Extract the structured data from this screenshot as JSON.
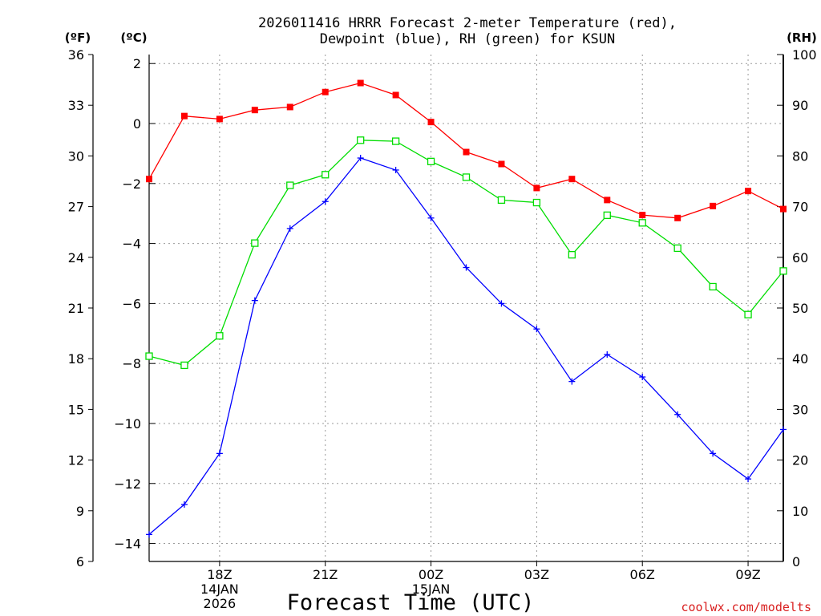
{
  "chart_data": {
    "type": "line",
    "title_lines": [
      "2026011416 HRRR Forecast 2-meter Temperature (red),",
      "Dewpoint (blue), RH (green) for KSUN"
    ],
    "xlabel": "Forecast Time (UTC)",
    "credit": "coolwx.com/modelts",
    "units": {
      "fahrenheit": "(ºF)",
      "celsius": "(ºC)",
      "rh": "(RH)"
    },
    "colors": {
      "temperature": "#ff0000",
      "dewpoint": "#0000ff",
      "rh": "#00dd00",
      "grid": "#999999",
      "credit": "#d92020"
    },
    "x": [
      16,
      17,
      18,
      19,
      20,
      21,
      22,
      23,
      24,
      25,
      26,
      27,
      28,
      29,
      30,
      31,
      32,
      33,
      34
    ],
    "xlim": [
      16,
      34
    ],
    "x_ticks": [
      {
        "x": 18,
        "lines": [
          "18Z",
          "14JAN",
          "2026"
        ]
      },
      {
        "x": 21,
        "lines": [
          "21Z"
        ]
      },
      {
        "x": 24,
        "lines": [
          "00Z",
          "15JAN"
        ]
      },
      {
        "x": 27,
        "lines": [
          "03Z"
        ]
      },
      {
        "x": 30,
        "lines": [
          "06Z"
        ]
      },
      {
        "x": 33,
        "lines": [
          "09Z"
        ]
      }
    ],
    "y_celsius": {
      "lim": [
        -14.6,
        2.3
      ],
      "ticks": [
        2,
        0,
        -2,
        -4,
        -6,
        -8,
        -10,
        -12,
        -14
      ],
      "tick_labels": [
        "2",
        "0",
        "−2",
        "−4",
        "−6",
        "−8",
        "−10",
        "−12",
        "−14"
      ]
    },
    "y_fahrenheit": {
      "lim": [
        6,
        36
      ],
      "ticks": [
        36,
        33,
        30,
        27,
        24,
        21,
        18,
        15,
        12,
        9,
        6
      ],
      "tick_labels": [
        "36",
        "33",
        "30",
        "27",
        "24",
        "21",
        "18",
        "15",
        "12",
        "9",
        "6"
      ]
    },
    "y_rh": {
      "lim": [
        0,
        100
      ],
      "ticks": [
        100,
        90,
        80,
        70,
        60,
        50,
        40,
        30,
        20,
        10,
        0
      ],
      "tick_labels": [
        "100",
        "90",
        "80",
        "70",
        "60",
        "50",
        "40",
        "30",
        "20",
        "10",
        "0"
      ]
    },
    "series": [
      {
        "name": "Temperature",
        "axis": "celsius",
        "marker": "filled-square",
        "color_key": "temperature",
        "values": [
          -1.85,
          0.25,
          0.15,
          0.45,
          0.55,
          1.05,
          1.35,
          0.95,
          0.05,
          -0.95,
          -1.35,
          -2.15,
          -1.85,
          -2.55,
          -3.05,
          -3.15,
          -2.75,
          -2.25,
          -2.85
        ]
      },
      {
        "name": "Dewpoint",
        "axis": "celsius",
        "marker": "plus",
        "color_key": "dewpoint",
        "values": [
          -13.7,
          -12.7,
          -11.0,
          -5.9,
          -3.5,
          -2.6,
          -1.15,
          -1.55,
          -3.15,
          -4.8,
          -6.0,
          -6.85,
          -8.6,
          -7.7,
          -8.45,
          -9.7,
          -11.0,
          -11.85,
          -10.2
        ]
      },
      {
        "name": "RH",
        "axis": "rh",
        "marker": "open-square",
        "color_key": "rh",
        "values": [
          40.5,
          38.7,
          44.5,
          62.8,
          74.2,
          76.3,
          83.1,
          82.9,
          78.9,
          75.8,
          71.3,
          70.8,
          60.5,
          68.3,
          66.8,
          61.8,
          54.2,
          48.7,
          57.3
        ]
      }
    ],
    "grid": true,
    "legend": "in-title"
  }
}
